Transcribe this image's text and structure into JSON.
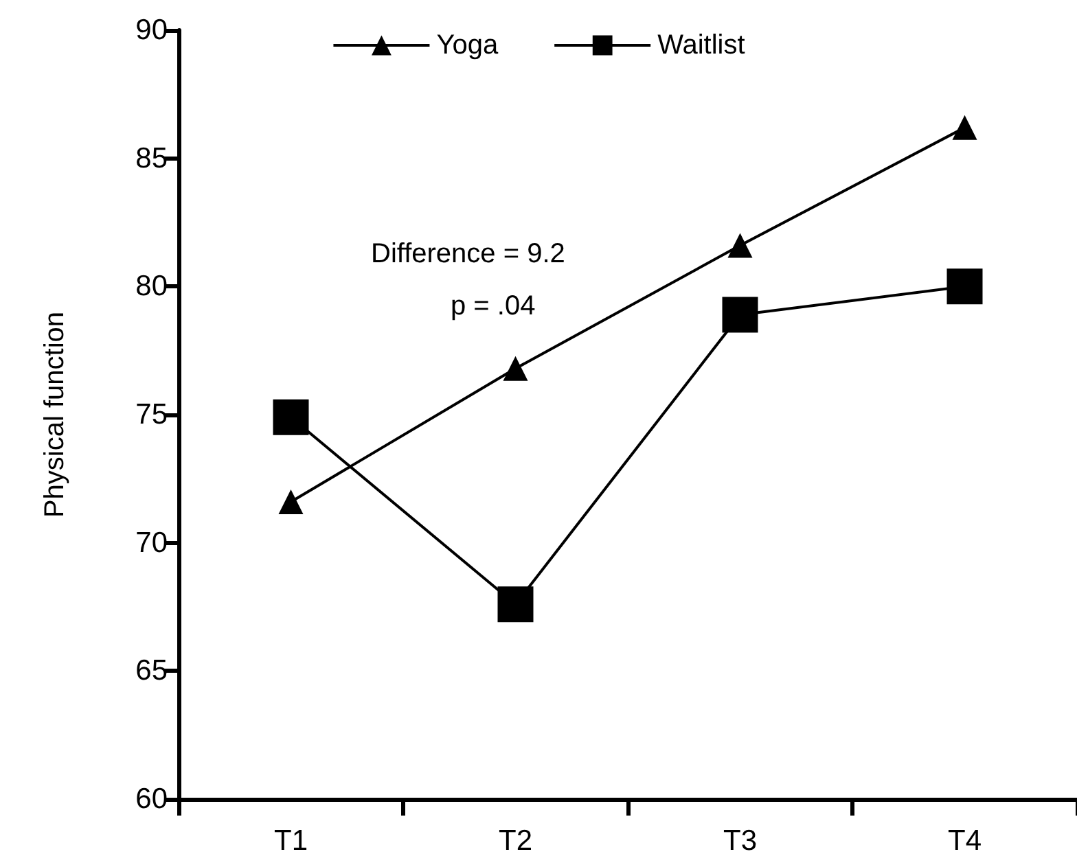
{
  "chart_data": {
    "type": "line",
    "ylabel": "Physical function",
    "categories": [
      "T1",
      "T2",
      "T3",
      "T4"
    ],
    "series": [
      {
        "name": "Yoga",
        "color": "#000000",
        "marker": "triangle",
        "values": [
          71.6,
          76.8,
          81.6,
          86.2
        ]
      },
      {
        "name": "Waitlist",
        "color": "#000000",
        "marker": "square",
        "values": [
          74.9,
          67.6,
          78.9,
          80.0
        ]
      }
    ],
    "ylim": [
      60,
      90
    ],
    "yticks": [
      60,
      65,
      70,
      75,
      80,
      85,
      90
    ],
    "grid": false,
    "legend": "top",
    "annotations": [
      "Difference = 9.2",
      "p = .04"
    ]
  }
}
